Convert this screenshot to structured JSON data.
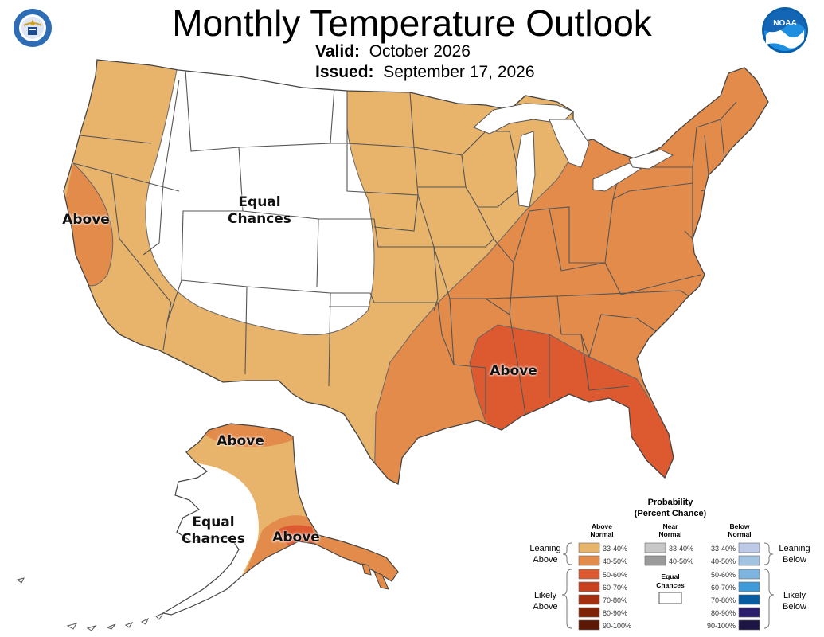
{
  "header": {
    "title": "Monthly Temperature Outlook",
    "valid_label": "Valid:",
    "valid_value": "October 2026",
    "issued_label": "Issued:",
    "issued_value": "September 17, 2026"
  },
  "logos": {
    "left": {
      "icon": "department-of-commerce-seal-icon",
      "text": "DEPARTMENT OF COMMERCE · UNITED STATES OF AMERICA"
    },
    "right": {
      "icon": "noaa-logo-icon",
      "text": "NOAA"
    }
  },
  "map_labels": {
    "conus_equal_line1": "Equal",
    "conus_equal_line2": "Chances",
    "west_coast_above": "Above",
    "southeast_above": "Above",
    "alaska_north_above": "Above",
    "alaska_south_above": "Above",
    "alaska_equal_line1": "Equal",
    "alaska_equal_line2": "Chances"
  },
  "legend": {
    "title_line1": "Probability",
    "title_line2": "(Percent Chance)",
    "above_header_line1": "Above",
    "above_header_line2": "Normal",
    "near_header_line1": "Near",
    "near_header_line2": "Normal",
    "below_header_line1": "Below",
    "below_header_line2": "Normal",
    "leaning_above_line1": "Leaning",
    "leaning_above_line2": "Above",
    "likely_above_line1": "Likely",
    "likely_above_line2": "Above",
    "leaning_below_line1": "Leaning",
    "leaning_below_line2": "Below",
    "likely_below_line1": "Likely",
    "likely_below_line2": "Below",
    "equal_chances_line1": "Equal",
    "equal_chances_line2": "Chances",
    "above": [
      {
        "label": "33-40%",
        "color": "#E8B46C"
      },
      {
        "label": "40-50%",
        "color": "#E38B4B"
      },
      {
        "label": "50-60%",
        "color": "#DD5A31"
      },
      {
        "label": "60-70%",
        "color": "#C9401E"
      },
      {
        "label": "70-80%",
        "color": "#A32D0F"
      },
      {
        "label": "80-90%",
        "color": "#7E2308"
      },
      {
        "label": "90-100%",
        "color": "#5C1804"
      }
    ],
    "near": [
      {
        "label": "33-40%",
        "color": "#C8C8C8"
      },
      {
        "label": "40-50%",
        "color": "#9A9A9A"
      }
    ],
    "below": [
      {
        "label": "33-40%",
        "color": "#BDC9E8"
      },
      {
        "label": "40-50%",
        "color": "#A3C3E3"
      },
      {
        "label": "50-60%",
        "color": "#7EB5E0"
      },
      {
        "label": "60-70%",
        "color": "#3E9AD8"
      },
      {
        "label": "70-80%",
        "color": "#075BA0"
      },
      {
        "label": "80-90%",
        "color": "#2B1E6C"
      },
      {
        "label": "90-100%",
        "color": "#1D1645"
      }
    ],
    "equal_color": "#FFFFFF"
  },
  "colors": {
    "state_border": "#555555",
    "coast": "#444444"
  }
}
